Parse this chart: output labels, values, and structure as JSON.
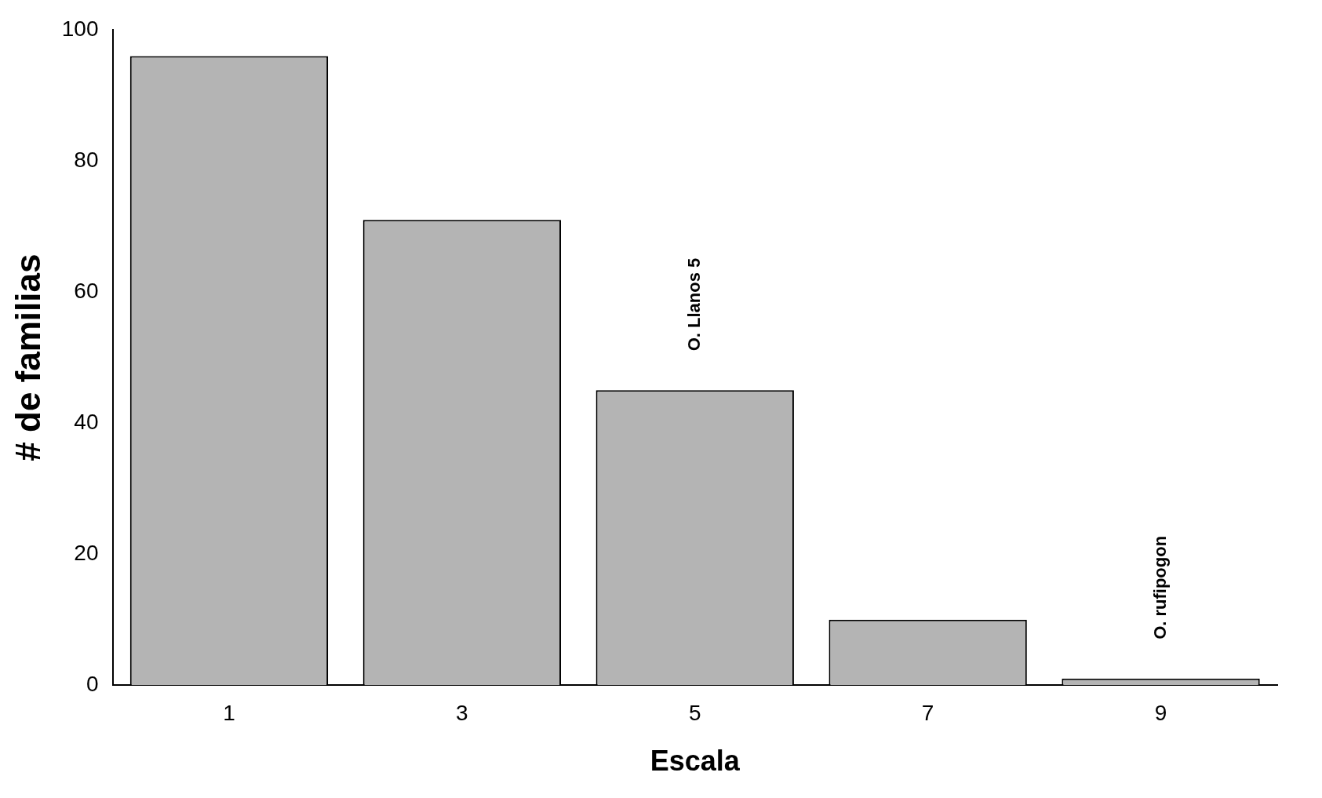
{
  "chart_data": {
    "type": "bar",
    "xlabel": "Escala",
    "ylabel": "# de familias",
    "categories": [
      "1",
      "3",
      "5",
      "7",
      "9"
    ],
    "values": [
      96,
      71,
      45,
      10,
      1
    ],
    "color": "#b4b4b4",
    "ylim": [
      0,
      100
    ],
    "yticks": [
      0,
      20,
      40,
      60,
      80,
      100
    ],
    "grid": false,
    "legend": false,
    "annotations": [
      {
        "text": "O. Llanos 5",
        "x": "5",
        "y": 45
      },
      {
        "text": "O. rufipogon",
        "x": "9",
        "y": 1
      }
    ]
  }
}
